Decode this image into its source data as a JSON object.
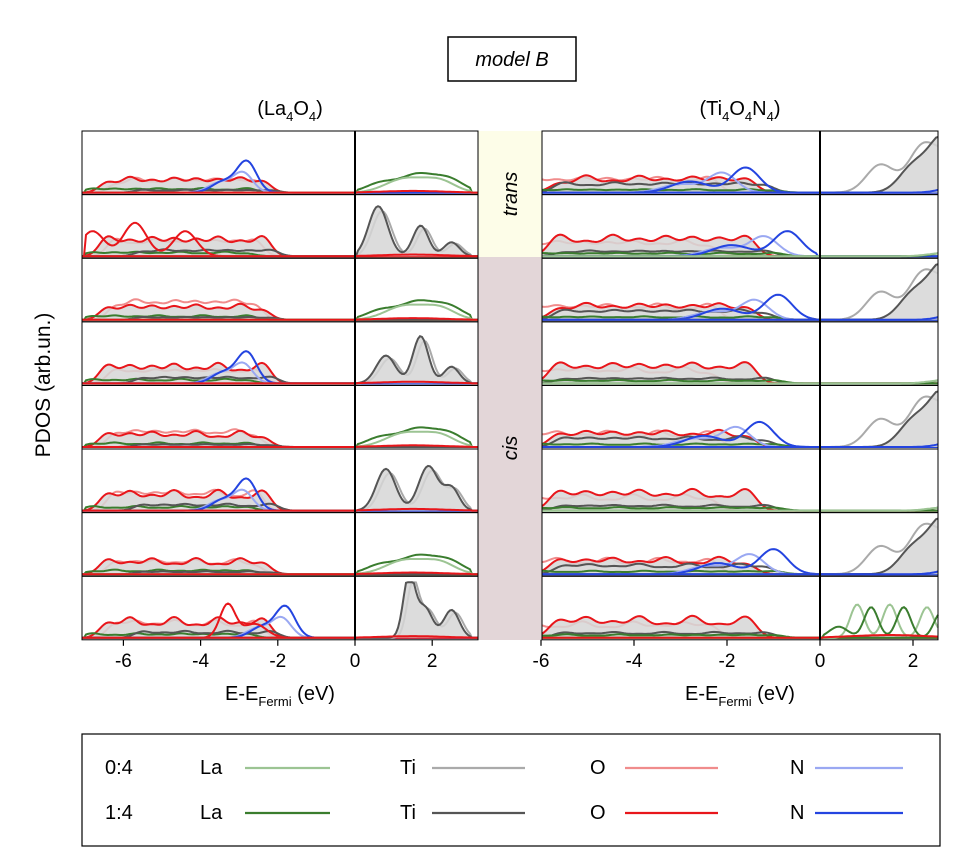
{
  "figure": {
    "model_label": "model B",
    "left_panel_title": {
      "base": "(La",
      "s1": "4",
      "mid": "O",
      "s2": "4",
      "end": ")"
    },
    "right_panel_title": {
      "base": "(Ti",
      "s1": "4",
      "mid": "O",
      "s2": "4",
      "mid2": "N",
      "s3": "4",
      "end": ")"
    },
    "y_axis_label": "PDOS (arb.un.)",
    "x_axis_label": {
      "base": "E-E",
      "sub": "Fermi",
      "unit": " (eV)"
    },
    "band_labels": {
      "trans": "trans",
      "cis": "cis"
    },
    "colors": {
      "La_light": "#9cc493",
      "La_dark": "#3a7d2e",
      "Ti_light": "#aaaaaa",
      "Ti_dark": "#555555",
      "O_light": "#f08c8c",
      "O_dark": "#e8161b",
      "N_light": "#9aa8f2",
      "N_dark": "#2444e0",
      "trans_band": "#fdfde8",
      "cis_band": "#e3d6d8",
      "fill": "#d6d6d6"
    },
    "legend": {
      "rows": [
        "0:4",
        "1:4"
      ],
      "elements": [
        "La",
        "Ti",
        "O",
        "N"
      ]
    }
  },
  "chart_data": [
    {
      "type": "line",
      "title": "(La4O4)",
      "xlabel": "E-EFermi (eV)",
      "ylabel": "PDOS (arb.un.)",
      "xlim": [
        -7,
        3
      ],
      "xticks": [
        -6,
        -4,
        -2,
        0,
        2
      ],
      "rows": 8,
      "series": [
        "La 0:4",
        "La 1:4",
        "Ti 0:4",
        "Ti 1:4",
        "O 0:4",
        "O 1:4",
        "N 0:4",
        "N 1:4"
      ]
    },
    {
      "type": "line",
      "title": "(Ti4O4N4)",
      "xlabel": "E-EFermi (eV)",
      "ylabel": "PDOS (arb.un.)",
      "xlim": [
        -7,
        3
      ],
      "xticks": [
        -6,
        -4,
        -2,
        0,
        2
      ],
      "rows": 8,
      "series": [
        "La 0:4",
        "La 1:4",
        "Ti 0:4",
        "Ti 1:4",
        "O 0:4",
        "O 1:4",
        "N 0:4",
        "N 1:4"
      ]
    }
  ]
}
